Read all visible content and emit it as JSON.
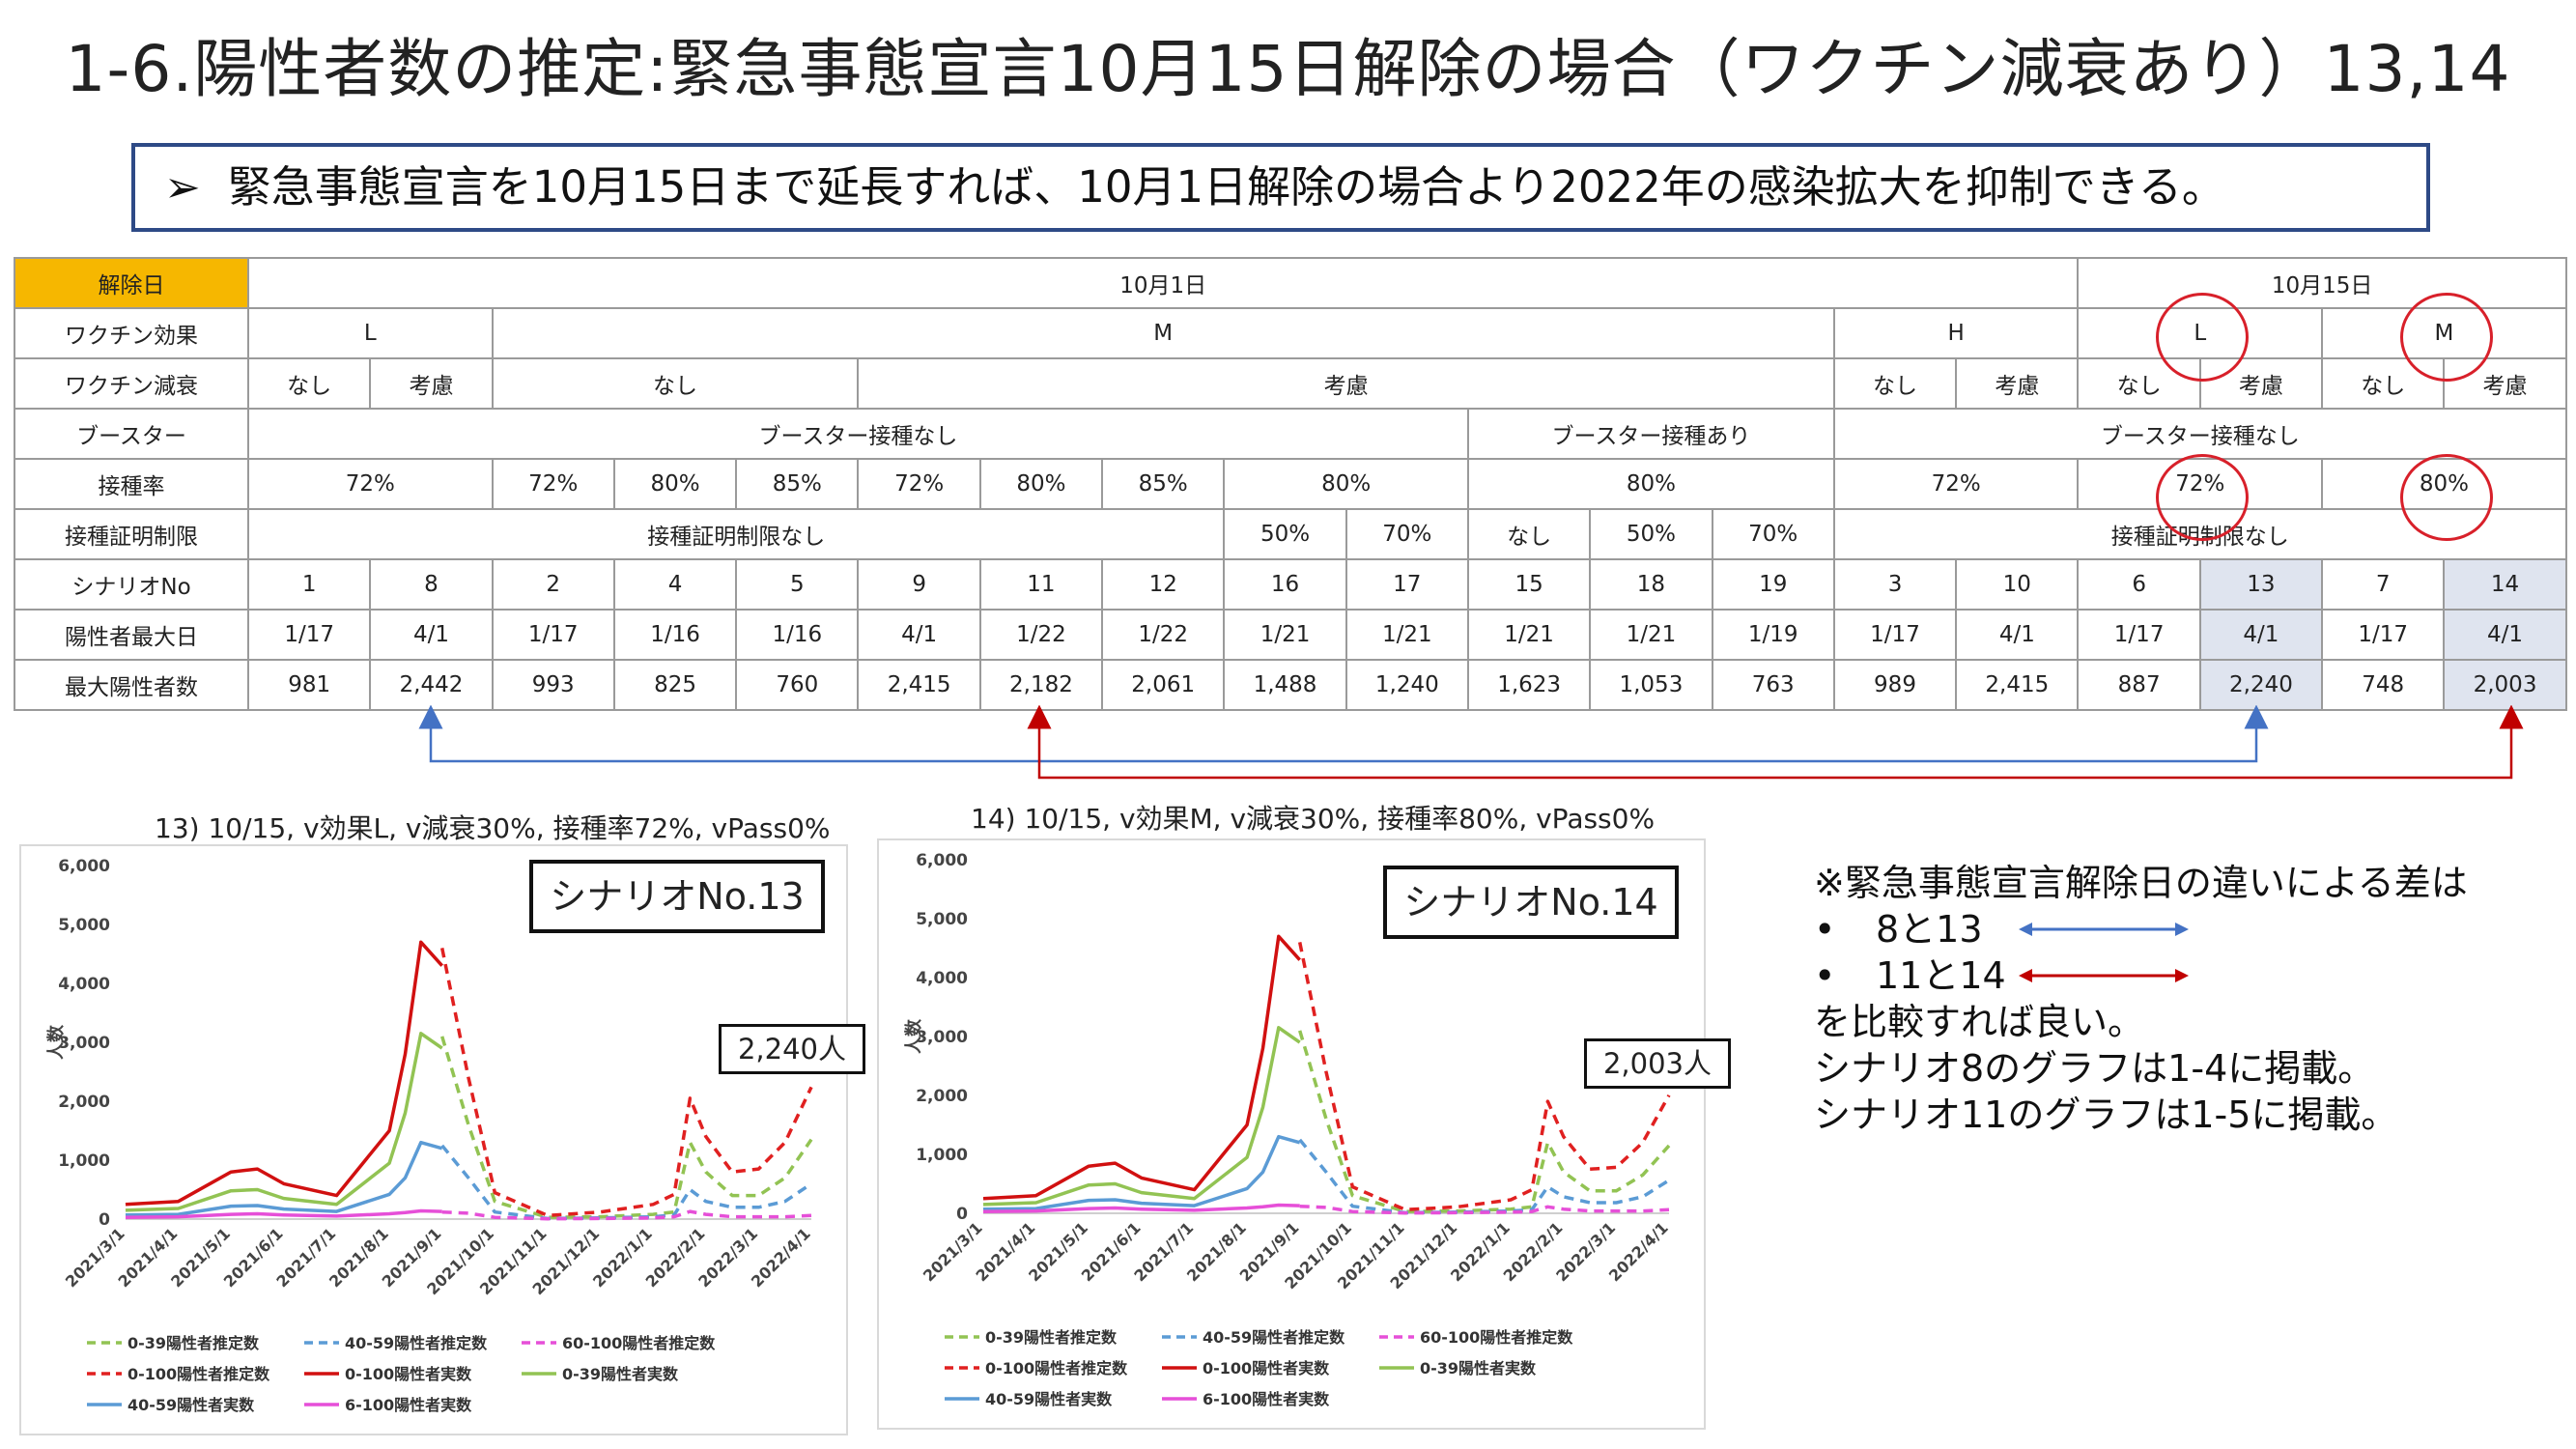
{
  "title": "1-6.陽性者数の推定:緊急事態宣言10月15日解除の場合（ワクチン減衰あり）13,14",
  "banner": {
    "arrow": "➢",
    "text": "緊急事態宣言を10月15日まで延長すれば、10月1日解除の場合より2022年の感染拡大を抑制できる。"
  },
  "table": {
    "labels": [
      "解除日",
      "ワクチン効果",
      "ワクチン減衰",
      "ブースター",
      "接種率",
      "接種証明制限",
      "シナリオNo",
      "陽性者最大日",
      "最大陽性者数"
    ],
    "release_dates": [
      "10月1日",
      "10月15日"
    ],
    "vaccine_effect": [
      "L",
      "M",
      "H",
      "L",
      "M"
    ],
    "decay": [
      "なし",
      "考慮",
      "なし",
      "考慮",
      "なし",
      "考慮",
      "なし",
      "考慮",
      "なし",
      "考慮"
    ],
    "booster": [
      "ブースター接種なし",
      "ブースター接種あり",
      "ブースター接種なし"
    ],
    "rate": [
      "72%",
      "72%",
      "80%",
      "85%",
      "72%",
      "80%",
      "85%",
      "80%",
      "80%",
      "72%",
      "72%",
      "80%"
    ],
    "cert": [
      "接種証明制限なし",
      "50%",
      "70%",
      "なし",
      "50%",
      "70%",
      "接種証明制限なし"
    ],
    "scenario": [
      "1",
      "8",
      "2",
      "4",
      "5",
      "9",
      "11",
      "12",
      "16",
      "17",
      "15",
      "18",
      "19",
      "3",
      "10",
      "6",
      "13",
      "7",
      "14"
    ],
    "peak_day": [
      "1/17",
      "4/1",
      "1/17",
      "1/16",
      "1/16",
      "4/1",
      "1/22",
      "1/22",
      "1/21",
      "1/21",
      "1/21",
      "1/21",
      "1/19",
      "1/17",
      "4/1",
      "1/17",
      "4/1",
      "1/17",
      "4/1"
    ],
    "peak_count": [
      "981",
      "2,442",
      "993",
      "825",
      "760",
      "2,415",
      "2,182",
      "2,061",
      "1,488",
      "1,240",
      "1,623",
      "1,053",
      "763",
      "989",
      "2,415",
      "887",
      "2,240",
      "748",
      "2,003"
    ]
  },
  "colors": {
    "blue": "#4472c4",
    "red": "#c00000",
    "gold": "#f6b700",
    "shade": "#dfe4ef",
    "circle": "#d8202a",
    "banner_border": "#2e4a86"
  },
  "chart_data": [
    {
      "type": "line",
      "title": "13) 10/15, v効果L, v減衰30%, 接種率72%, vPass0%",
      "scenario_label": "シナリオNo.13",
      "callout": "2,240人",
      "ylabel": "人数",
      "ylim": [
        0,
        6000
      ],
      "yticks": [
        "0",
        "1,000",
        "2,000",
        "3,000",
        "4,000",
        "5,000",
        "6,000"
      ],
      "x_ticks": [
        "2021/3/1",
        "2021/4/1",
        "2021/5/1",
        "2021/6/1",
        "2021/7/1",
        "2021/8/1",
        "2021/9/1",
        "2021/10/1",
        "2021/11/1",
        "2021/12/1",
        "2022/1/1",
        "2022/2/1",
        "2022/3/1",
        "2022/4/1"
      ],
      "x": [
        0,
        1,
        2,
        2.5,
        3,
        4,
        5,
        5.3,
        5.6,
        6,
        6.5,
        7,
        8,
        9,
        10,
        10.4,
        10.7,
        11,
        11.5,
        12,
        12.5,
        13
      ],
      "legend_order": [
        0,
        1,
        2,
        3,
        4,
        5,
        6,
        7
      ],
      "series": [
        {
          "name": "0-39陽性者推定数",
          "color": "#92c353",
          "dash": "dash",
          "values": [
            null,
            null,
            null,
            null,
            null,
            null,
            null,
            null,
            null,
            3100,
            1600,
            300,
            30,
            40,
            80,
            120,
            1300,
            800,
            400,
            400,
            700,
            1350
          ]
        },
        {
          "name": "40-59陽性者推定数",
          "color": "#5b9bd5",
          "dash": "dash",
          "values": [
            null,
            null,
            null,
            null,
            null,
            null,
            null,
            null,
            null,
            1250,
            700,
            120,
            10,
            20,
            40,
            70,
            500,
            300,
            200,
            200,
            300,
            600
          ]
        },
        {
          "name": "60-100陽性者推定数",
          "color": "#e64fd8",
          "dash": "dash",
          "values": [
            null,
            null,
            null,
            null,
            null,
            null,
            null,
            null,
            null,
            120,
            100,
            30,
            5,
            10,
            20,
            40,
            130,
            80,
            40,
            40,
            40,
            60
          ]
        },
        {
          "name": "0-100陽性者推定数",
          "color": "#e02020",
          "dash": "dash",
          "values": [
            null,
            null,
            null,
            null,
            null,
            null,
            null,
            null,
            null,
            4600,
            2400,
            450,
            60,
            120,
            250,
            420,
            2050,
            1400,
            800,
            850,
            1300,
            2240
          ]
        },
        {
          "name": "0-100陽性者実数",
          "color": "#d11010",
          "dash": "solid",
          "values": [
            250,
            300,
            800,
            850,
            600,
            400,
            1500,
            2800,
            4700,
            4300,
            null,
            null,
            null,
            null,
            null,
            null,
            null,
            null,
            null,
            null,
            null,
            null
          ]
        },
        {
          "name": "0-39陽性者実数",
          "color": "#92c353",
          "dash": "solid",
          "values": [
            150,
            180,
            480,
            500,
            350,
            250,
            950,
            1800,
            3150,
            2900,
            null,
            null,
            null,
            null,
            null,
            null,
            null,
            null,
            null,
            null,
            null,
            null
          ]
        },
        {
          "name": "40-59陽性者実数",
          "color": "#5b9bd5",
          "dash": "solid",
          "values": [
            70,
            80,
            220,
            230,
            170,
            130,
            420,
            700,
            1300,
            1200,
            null,
            null,
            null,
            null,
            null,
            null,
            null,
            null,
            null,
            null,
            null,
            null
          ]
        },
        {
          "name": "6-100陽性者実数",
          "color": "#e64fd8",
          "dash": "solid",
          "values": [
            30,
            40,
            80,
            90,
            70,
            50,
            90,
            110,
            140,
            130,
            null,
            null,
            null,
            null,
            null,
            null,
            null,
            null,
            null,
            null,
            null,
            null
          ]
        }
      ]
    },
    {
      "type": "line",
      "title": "14) 10/15, v効果M, v減衰30%, 接種率80%, vPass0%",
      "scenario_label": "シナリオNo.14",
      "callout": "2,003人",
      "ylabel": "人数",
      "ylim": [
        0,
        6000
      ],
      "yticks": [
        "0",
        "1,000",
        "2,000",
        "3,000",
        "4,000",
        "5,000",
        "6,000"
      ],
      "x_ticks": [
        "2021/3/1",
        "2021/4/1",
        "2021/5/1",
        "2021/6/1",
        "2021/7/1",
        "2021/8/1",
        "2021/9/1",
        "2021/10/1",
        "2021/11/1",
        "2021/12/1",
        "2022/1/1",
        "2022/2/1",
        "2022/3/1",
        "2022/4/1"
      ],
      "x": [
        0,
        1,
        2,
        2.5,
        3,
        4,
        5,
        5.3,
        5.6,
        6,
        6.5,
        7,
        8,
        9,
        10,
        10.4,
        10.7,
        11,
        11.5,
        12,
        12.5,
        13
      ],
      "legend_order": [
        0,
        1,
        2,
        3,
        4,
        5,
        6,
        7
      ],
      "series": [
        {
          "name": "0-39陽性者推定数",
          "color": "#92c353",
          "dash": "dash",
          "values": [
            null,
            null,
            null,
            null,
            null,
            null,
            null,
            null,
            null,
            3100,
            1600,
            300,
            30,
            40,
            70,
            110,
            1200,
            700,
            380,
            380,
            650,
            1150
          ]
        },
        {
          "name": "40-59陽性者推定数",
          "color": "#5b9bd5",
          "dash": "dash",
          "values": [
            null,
            null,
            null,
            null,
            null,
            null,
            null,
            null,
            null,
            1250,
            700,
            120,
            10,
            20,
            40,
            60,
            450,
            280,
            180,
            180,
            280,
            560
          ]
        },
        {
          "name": "60-100陽性者推定数",
          "color": "#e64fd8",
          "dash": "dash",
          "values": [
            null,
            null,
            null,
            null,
            null,
            null,
            null,
            null,
            null,
            120,
            100,
            30,
            5,
            10,
            20,
            30,
            110,
            70,
            40,
            40,
            40,
            60
          ]
        },
        {
          "name": "0-100陽性者推定数",
          "color": "#e02020",
          "dash": "dash",
          "values": [
            null,
            null,
            null,
            null,
            null,
            null,
            null,
            null,
            null,
            4600,
            2400,
            450,
            60,
            110,
            230,
            400,
            1900,
            1300,
            750,
            780,
            1200,
            2003
          ]
        },
        {
          "name": "0-100陽性者実数",
          "color": "#d11010",
          "dash": "solid",
          "values": [
            250,
            300,
            800,
            850,
            600,
            400,
            1500,
            2800,
            4700,
            4300,
            null,
            null,
            null,
            null,
            null,
            null,
            null,
            null,
            null,
            null,
            null,
            null
          ]
        },
        {
          "name": "0-39陽性者実数",
          "color": "#92c353",
          "dash": "solid",
          "values": [
            150,
            180,
            480,
            500,
            350,
            250,
            950,
            1800,
            3150,
            2900,
            null,
            null,
            null,
            null,
            null,
            null,
            null,
            null,
            null,
            null,
            null,
            null
          ]
        },
        {
          "name": "40-59陽性者実数",
          "color": "#5b9bd5",
          "dash": "solid",
          "values": [
            70,
            80,
            220,
            230,
            170,
            130,
            420,
            700,
            1300,
            1200,
            null,
            null,
            null,
            null,
            null,
            null,
            null,
            null,
            null,
            null,
            null,
            null
          ]
        },
        {
          "name": "6-100陽性者実数",
          "color": "#e64fd8",
          "dash": "solid",
          "values": [
            30,
            40,
            80,
            90,
            70,
            50,
            90,
            110,
            140,
            130,
            null,
            null,
            null,
            null,
            null,
            null,
            null,
            null,
            null,
            null,
            null,
            null
          ]
        }
      ]
    }
  ],
  "note": {
    "heading": "※緊急事態宣言解除日の違いによる差は",
    "bullet": "•",
    "item1": "8と13",
    "item2": "11と14",
    "line3": "を比較すれば良い。",
    "line4": "シナリオ8のグラフは1-4に掲載。",
    "line5": "シナリオ11のグラフは1-5に掲載。"
  }
}
